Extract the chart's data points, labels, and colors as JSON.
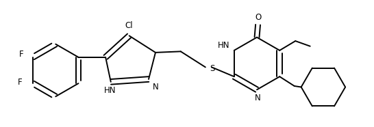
{
  "bg_color": "#ffffff",
  "line_color": "#000000",
  "line_width": 1.4,
  "font_size": 8.5,
  "figsize": [
    5.46,
    1.86
  ],
  "dpi": 100,
  "xlim": [
    -3.6,
    3.5
  ],
  "ylim": [
    -1.0,
    1.1
  ]
}
